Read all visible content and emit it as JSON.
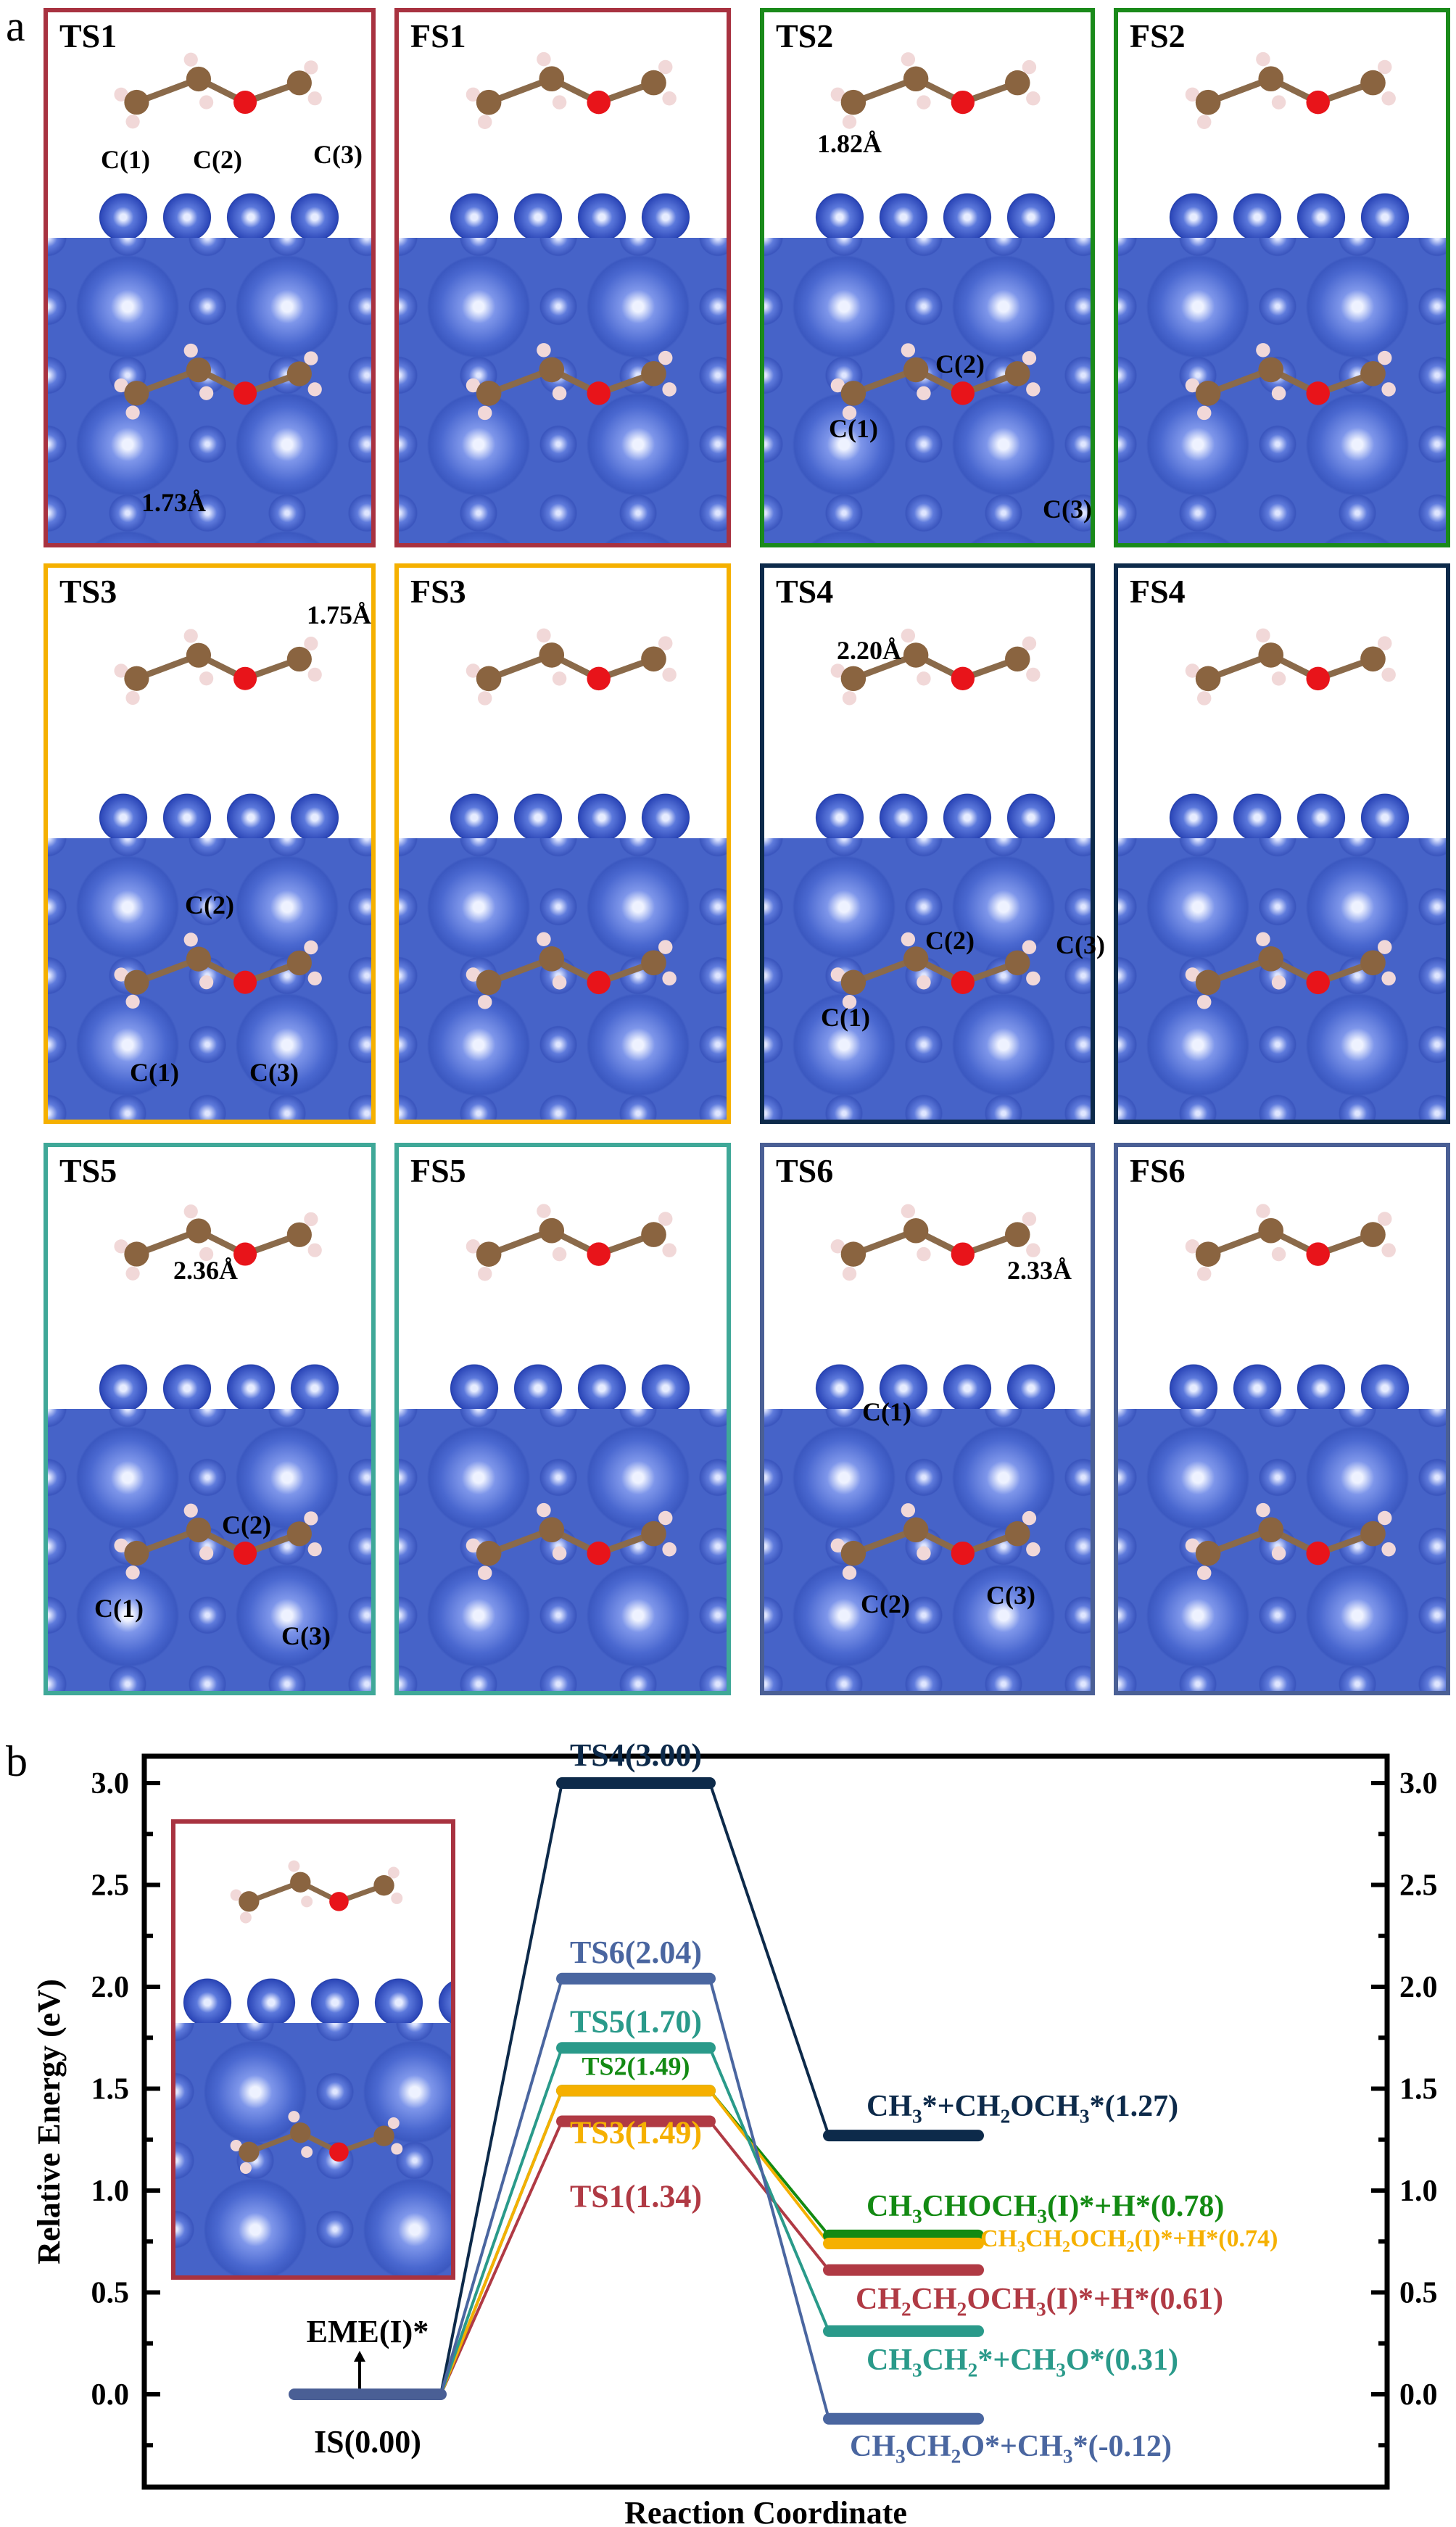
{
  "panel_a": {
    "label": "a",
    "panels": [
      {
        "title": "TS1",
        "border": "#a83240",
        "annotations": [
          "C(1)",
          "C(2)",
          "C(3)",
          "1.73Å"
        ]
      },
      {
        "title": "FS1",
        "border": "#a83240",
        "annotations": []
      },
      {
        "title": "TS2",
        "border": "#1a8a1a",
        "annotations": [
          "1.82Å",
          "C(1)",
          "C(2)",
          "C(3)"
        ]
      },
      {
        "title": "FS2",
        "border": "#1a8a1a",
        "annotations": []
      },
      {
        "title": "TS3",
        "border": "#f5b000",
        "annotations": [
          "1.75Å",
          "C(2)",
          "C(1)",
          "C(3)"
        ]
      },
      {
        "title": "FS3",
        "border": "#f5b000",
        "annotations": []
      },
      {
        "title": "TS4",
        "border": "#0d2a4a",
        "annotations": [
          "2.20Å",
          "C(1)",
          "C(2)",
          "C(3)"
        ]
      },
      {
        "title": "FS4",
        "border": "#0d2a4a",
        "annotations": []
      },
      {
        "title": "TS5",
        "border": "#3fa898",
        "annotations": [
          "2.36Å",
          "C(2)",
          "C(1)",
          "C(3)"
        ]
      },
      {
        "title": "FS5",
        "border": "#3fa898",
        "annotations": []
      },
      {
        "title": "TS6",
        "border": "#4a5f95",
        "annotations": [
          "2.33Å",
          "C(1)",
          "C(2)",
          "C(3)"
        ]
      },
      {
        "title": "FS6",
        "border": "#4a5f95",
        "annotations": []
      }
    ]
  },
  "chart_data": {
    "panel_label": "b",
    "type": "energy-profile",
    "xlabel": "Reaction Coordinate",
    "ylabel": "Relative Energy (eV)",
    "ylim": [
      -0.45,
      3.14
    ],
    "yticks": [
      "0.0",
      "0.5",
      "1.0",
      "1.5",
      "2.0",
      "2.5",
      "3.0"
    ],
    "ytick_values": [
      0,
      0.5,
      1.0,
      1.5,
      2.0,
      2.5,
      3.0
    ],
    "initial": {
      "label": "IS(0.00)",
      "value": 0.0,
      "color": "#4a5f95",
      "annotation": "EME(I)*"
    },
    "series": [
      {
        "name": "TS1",
        "ts_label": "TS1(1.34)",
        "ts": 1.34,
        "fs_label": "CH2CH2OCH3(I)*+H*(0.61)",
        "fs": 0.61,
        "color": "#b03a44"
      },
      {
        "name": "TS2",
        "ts_label": "TS2(1.49)",
        "ts": 1.49,
        "fs_label": "CH3CHOCH3(I)*+H*(0.78)",
        "fs": 0.78,
        "color": "#138a13"
      },
      {
        "name": "TS3",
        "ts_label": "TS3(1.49)",
        "ts": 1.49,
        "fs_label": "CH3CH2OCH2(I)*+H*(0.74)",
        "fs": 0.74,
        "color": "#f5b000"
      },
      {
        "name": "TS4",
        "ts_label": "TS4(3.00)",
        "ts": 3.0,
        "fs_label": "CH3*+CH2OCH3*(1.27)",
        "fs": 1.27,
        "color": "#0d2a4a"
      },
      {
        "name": "TS5",
        "ts_label": "TS5(1.70)",
        "ts": 1.7,
        "fs_label": "CH3CH2*+CH3O*(0.31)",
        "fs": 0.31,
        "color": "#2a9a8a"
      },
      {
        "name": "TS6",
        "ts_label": "TS6(2.04)",
        "ts": 2.04,
        "fs_label": "CH3CH2O*+CH3*(-0.12)",
        "fs": -0.12,
        "color": "#4a66a0"
      }
    ],
    "inset_border": "#a83240"
  }
}
